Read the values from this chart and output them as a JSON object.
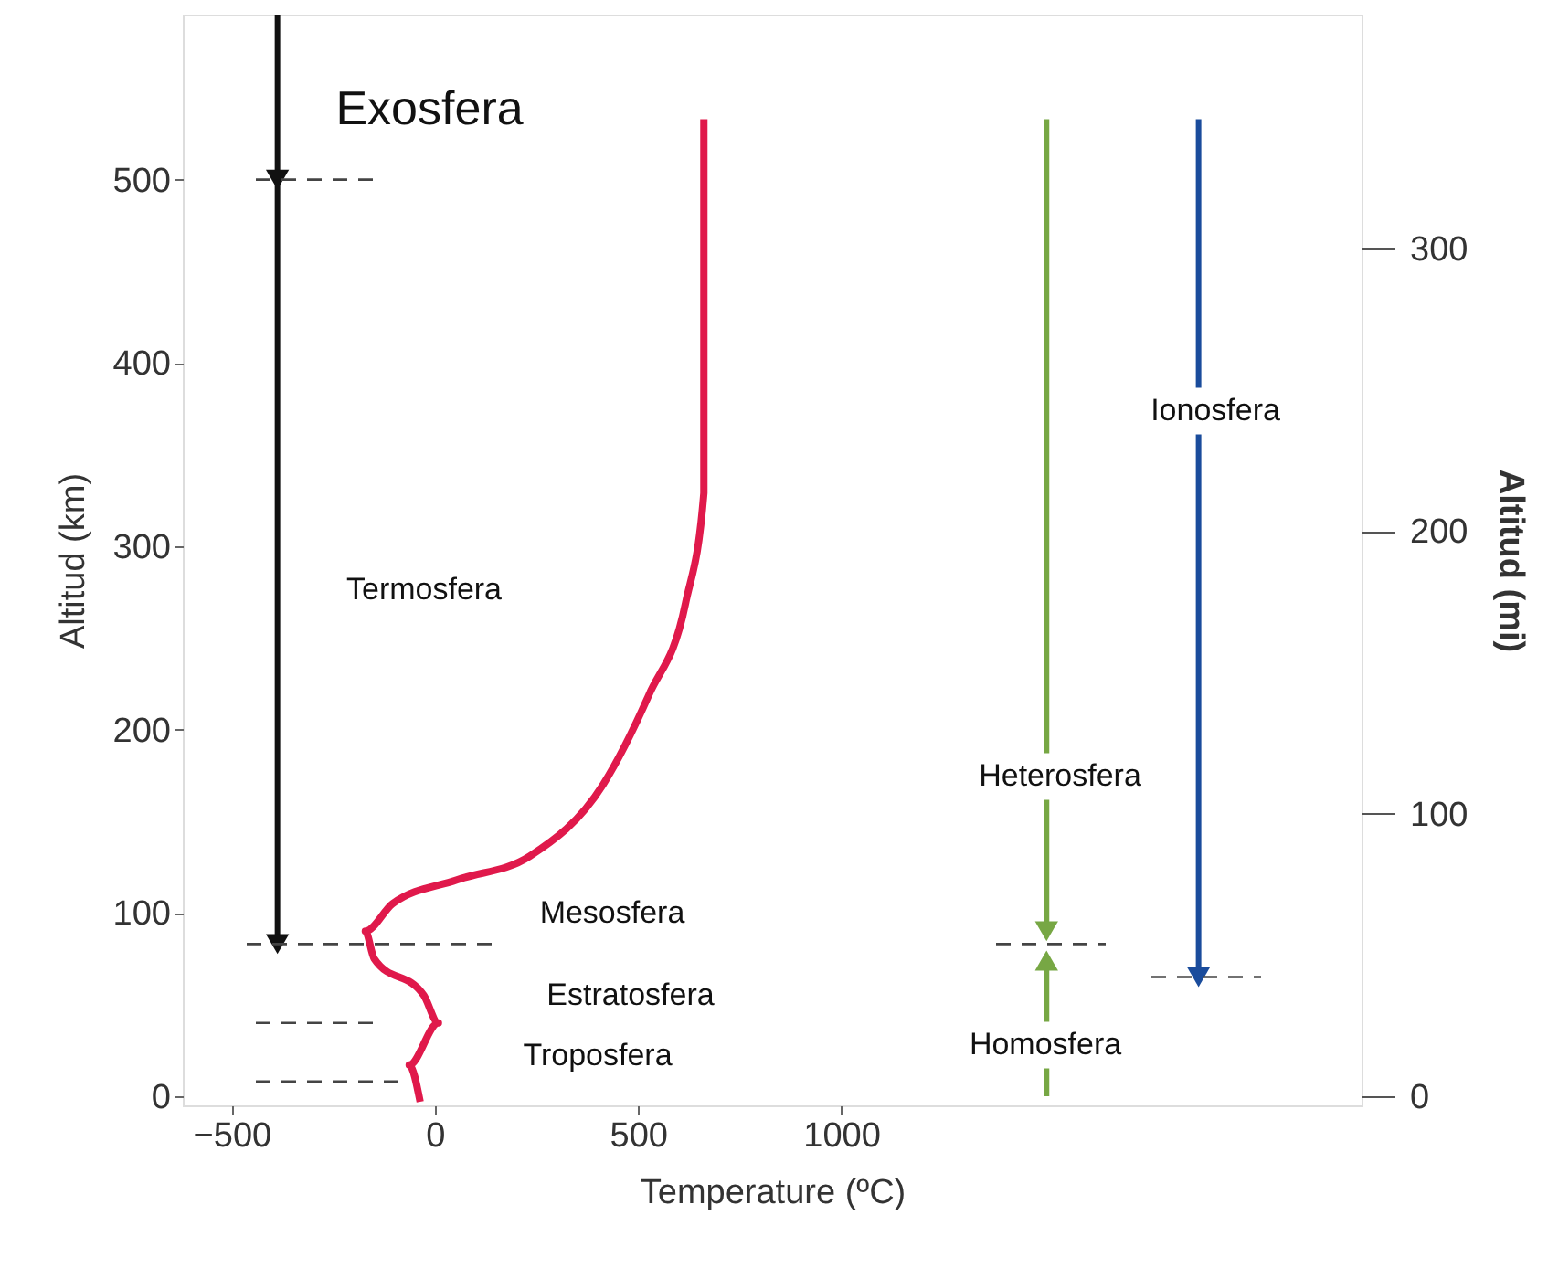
{
  "chart_data": {
    "type": "line",
    "xlabel": "Temperature (ºC)",
    "ylabel": "Altitud  (km)",
    "y2label": "Altitud  (mi)",
    "xlim": [
      -620,
      2280
    ],
    "xticks": [
      -500,
      0,
      500,
      {
        "value": 1000,
        "label": "1000"
      }
    ],
    "line_style": "solid",
    "ylim": [
      -5,
      590
    ],
    "yticks": [
      0,
      100,
      200,
      300,
      400,
      500
    ],
    "y2lim": [
      -3.2,
      382.7
    ],
    "y2ticks": [
      0,
      100,
      200,
      300
    ],
    "grid": false,
    "series": [
      {
        "color": "#e0194b",
        "x": [
          -36,
          -63,
          9,
          -27,
          -149,
          -171,
          -104,
          54,
          234,
          414,
          527,
          617,
          662,
          662
        ],
        "values": [
          -3,
          17,
          40,
          55,
          75,
          90,
          105,
          118,
          131,
          170,
          219,
          269,
          329,
          533
        ]
      },
      {
        "color": "#111111",
        "x": [
          -387,
          -387
        ],
        "values": [
          590,
          500
        ],
        "marker": "triangle"
      },
      {
        "color": "#111111",
        "x": [
          -387,
          -387
        ],
        "values": [
          500,
          83
        ],
        "marker": "triangle"
      },
      {
        "color": "#77a744",
        "x": [
          1505,
          1505
        ],
        "values": [
          533,
          90
        ],
        "marker": "triangle"
      },
      {
        "color": "#77a744",
        "x": [
          1505,
          1505
        ],
        "values": [
          0,
          74
        ],
        "marker": "triangle"
      },
      {
        "color": "#1a4c9c",
        "x": [
          1879,
          1879
        ],
        "values": [
          533,
          65
        ],
        "marker": "triangle"
      }
    ],
    "ref_lines": [
      {
        "axis": "y",
        "value": 500,
        "line_style": "dashed"
      },
      {
        "axis": "y",
        "value": 83,
        "line_style": "dashed"
      },
      {
        "axis": "y",
        "value": 40,
        "line_style": "dashed"
      },
      {
        "axis": "y",
        "value": 8,
        "line_style": "dashed"
      },
      {
        "axis": "y",
        "value": 65,
        "line_style": "dashed"
      }
    ],
    "annotations": [
      "Exosfera",
      "Termosfera",
      "Mesosfera",
      "Estratosfera",
      "Troposfera",
      "Heterosfera",
      "Homosfera",
      "Ionosfera"
    ]
  }
}
